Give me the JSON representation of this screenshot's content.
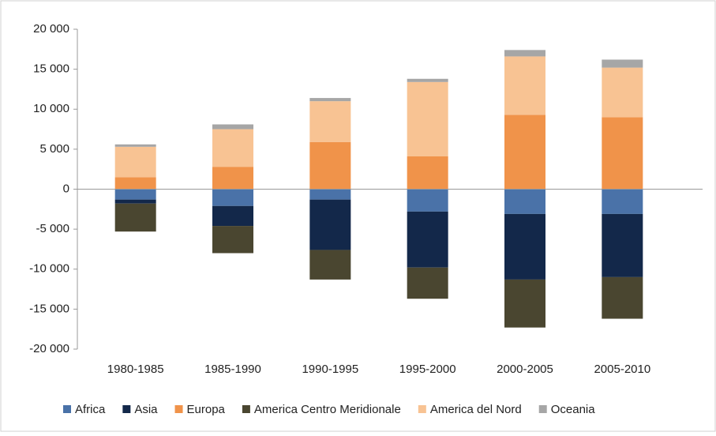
{
  "chart_data": {
    "type": "stacked-bar",
    "categories": [
      "1980-1985",
      "1985-1990",
      "1990-1995",
      "1995-2000",
      "2000-2005",
      "2005-2010"
    ],
    "series": [
      {
        "name": "Africa",
        "color": "#4a72a8",
        "values": [
          -1300,
          -2100,
          -1300,
          -2800,
          -3100,
          -3100
        ]
      },
      {
        "name": "Asia",
        "color": "#13284a",
        "values": [
          -500,
          -2500,
          -6300,
          -7000,
          -8200,
          -7900
        ]
      },
      {
        "name": "Europa",
        "color": "#f0934a",
        "values": [
          1500,
          2800,
          5900,
          4100,
          9300,
          9000
        ]
      },
      {
        "name": "America Centro Meridionale",
        "color": "#4a4630",
        "values": [
          -3500,
          -3400,
          -3700,
          -3900,
          -6000,
          -5200
        ]
      },
      {
        "name": "America del Nord",
        "color": "#f8c393",
        "values": [
          3800,
          4700,
          5100,
          9300,
          7300,
          6200
        ]
      },
      {
        "name": "Oceania",
        "color": "#a6a6a6",
        "values": [
          300,
          600,
          400,
          400,
          800,
          1000
        ]
      }
    ],
    "ylim": [
      -20000,
      20000
    ],
    "yticks": [
      {
        "value": -20000,
        "label": "-20 000"
      },
      {
        "value": -15000,
        "label": "-15 000"
      },
      {
        "value": -10000,
        "label": "-10 000"
      },
      {
        "value": -5000,
        "label": "-5 000"
      },
      0,
      {
        "value": 5000,
        "label": "5 000"
      },
      {
        "value": 10000,
        "label": "10 000"
      },
      {
        "value": 15000,
        "label": "15 000"
      },
      {
        "value": 20000,
        "label": "20 000"
      }
    ],
    "legend": "bottom"
  }
}
